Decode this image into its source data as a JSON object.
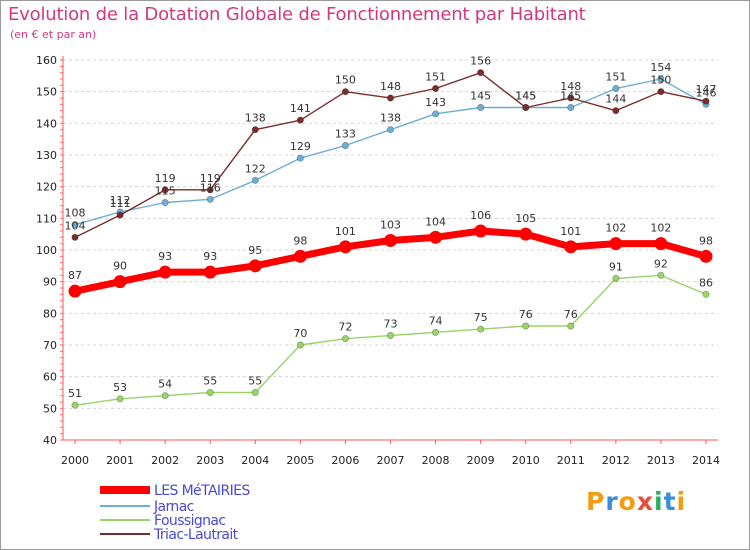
{
  "title": "Evolution de la Dotation Globale de Fonctionnement par Habitant",
  "subtitle": "(en € et par an)",
  "logo": {
    "text": "Proxiti",
    "colors": [
      "#f39c12",
      "#3a8fd6",
      "#f39c12",
      "#e74c3c",
      "#27ae60",
      "#3a8fd6",
      "#f39c12"
    ]
  },
  "chart_data": {
    "type": "line",
    "title": "Evolution de la Dotation Globale de Fonctionnement par Habitant",
    "ylabel": "(en € et par an)",
    "xlabel": "",
    "ylim": [
      40,
      160
    ],
    "yticks": [
      40,
      50,
      60,
      70,
      80,
      90,
      100,
      110,
      120,
      130,
      140,
      150,
      160
    ],
    "x": [
      "2000",
      "2001",
      "2002",
      "2003",
      "2004",
      "2005",
      "2006",
      "2007",
      "2008",
      "2009",
      "2010",
      "2011",
      "2012",
      "2013",
      "2014"
    ],
    "grid": "horizontal dashed",
    "legend_position": "bottom-left",
    "series": [
      {
        "name": "LES MéTAIRIES",
        "color": "#ff0000",
        "highlight": true,
        "values": [
          87,
          90,
          93,
          93,
          95,
          98,
          101,
          103,
          104,
          106,
          105,
          101,
          102,
          102,
          98
        ]
      },
      {
        "name": "Jarnac",
        "color": "#6baed6",
        "highlight": false,
        "values": [
          108,
          112,
          115,
          116,
          122,
          129,
          133,
          138,
          143,
          145,
          145,
          145,
          151,
          154,
          146
        ]
      },
      {
        "name": "Foussignac",
        "color": "#99d36a",
        "highlight": false,
        "values": [
          51,
          53,
          54,
          55,
          55,
          70,
          72,
          73,
          74,
          75,
          76,
          76,
          91,
          92,
          86
        ]
      },
      {
        "name": "Triac-Lautrait",
        "color": "#7b2d2d",
        "highlight": false,
        "values": [
          104,
          111,
          119,
          119,
          138,
          141,
          150,
          148,
          151,
          156,
          145,
          148,
          144,
          150,
          147
        ]
      }
    ],
    "labeled_series": [
      "LES MéTAIRIES",
      "Foussignac",
      "Triac-Lautrait"
    ],
    "jarnac_labels": [
      108,
      112,
      115,
      116,
      122,
      129,
      133,
      138,
      143,
      145,
      145,
      145,
      151,
      154,
      146
    ]
  }
}
